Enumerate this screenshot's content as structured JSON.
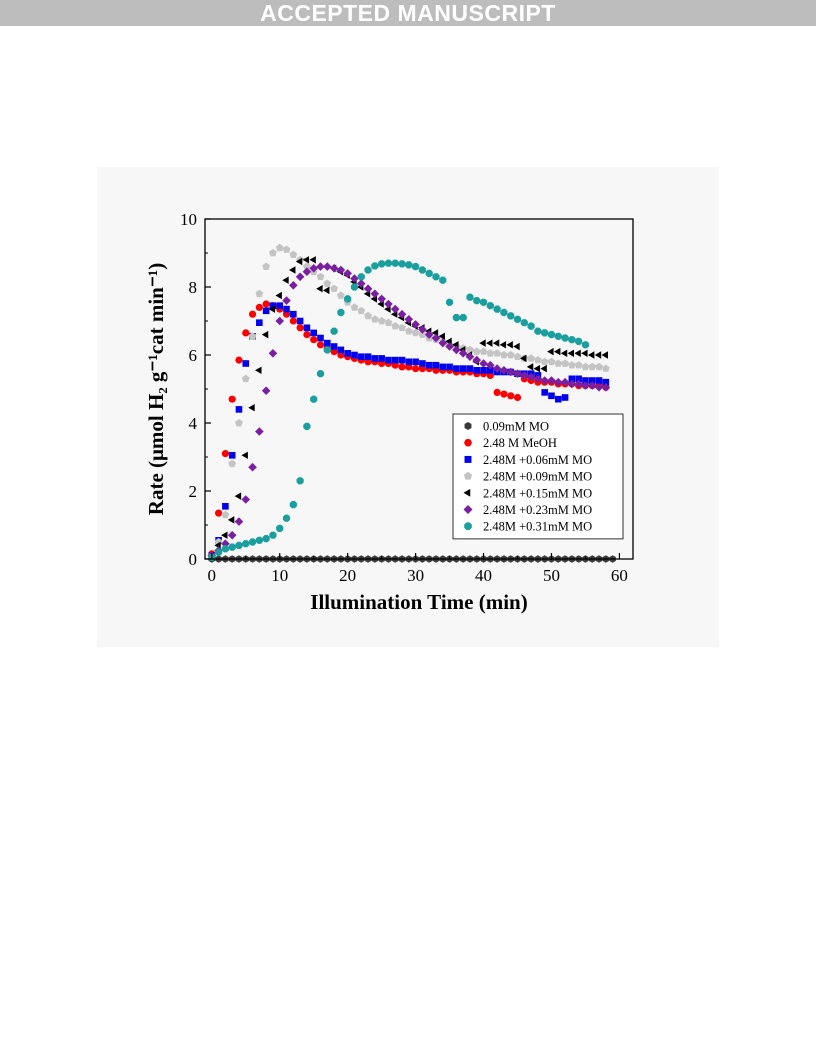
{
  "banner": {
    "text": "ACCEPTED MANUSCRIPT"
  },
  "chart_data": {
    "type": "scatter",
    "title": "",
    "xlabel": "Illumination Time (min)",
    "ylabel": "Rate (μmol H₂ g⁻¹cat min⁻¹)",
    "xlim": [
      -1,
      62
    ],
    "ylim": [
      0,
      10
    ],
    "xticks": [
      0,
      10,
      20,
      30,
      40,
      50,
      60
    ],
    "yticks": [
      0,
      2,
      4,
      6,
      8,
      10
    ],
    "grid": false,
    "legend_position": "lower-right",
    "series": [
      {
        "name": "0.09mM MO",
        "color": "#3a3a3a",
        "marker": "hexagon",
        "x": [
          0,
          1,
          2,
          3,
          4,
          5,
          6,
          7,
          8,
          9,
          10,
          11,
          12,
          13,
          14,
          15,
          16,
          17,
          18,
          19,
          20,
          21,
          22,
          23,
          24,
          25,
          26,
          27,
          28,
          29,
          30,
          31,
          32,
          33,
          34,
          35,
          36,
          37,
          38,
          39,
          40,
          41,
          42,
          43,
          44,
          45,
          46,
          47,
          48,
          49,
          50,
          51,
          52,
          53,
          54,
          55,
          56,
          57,
          58,
          59
        ],
        "y": [
          0,
          0,
          0,
          0,
          0,
          0,
          0,
          0,
          0,
          0,
          0,
          0,
          0,
          0,
          0,
          0,
          0,
          0,
          0,
          0,
          0,
          0,
          0,
          0,
          0,
          0,
          0,
          0,
          0,
          0,
          0,
          0,
          0,
          0,
          0,
          0,
          0,
          0,
          0,
          0,
          0,
          0,
          0,
          0,
          0,
          0,
          0,
          0,
          0,
          0,
          0,
          0,
          0,
          0,
          0,
          0,
          0,
          0,
          0,
          0
        ]
      },
      {
        "name": "2.48 M MeOH",
        "color": "#ff0000",
        "marker": "circle",
        "x": [
          0,
          1,
          2,
          3,
          4,
          5,
          6,
          7,
          8,
          9,
          10,
          11,
          12,
          13,
          14,
          15,
          16,
          17,
          18,
          19,
          20,
          21,
          22,
          23,
          24,
          25,
          26,
          27,
          28,
          29,
          30,
          31,
          32,
          33,
          34,
          35,
          36,
          37,
          38,
          39,
          40,
          41,
          42,
          43,
          44,
          45,
          46,
          47,
          48,
          49,
          50,
          51,
          52,
          53,
          54,
          55,
          56,
          57,
          58
        ],
        "y": [
          0.15,
          1.35,
          3.1,
          4.7,
          5.85,
          6.65,
          7.2,
          7.4,
          7.5,
          7.45,
          7.35,
          7.2,
          7.0,
          6.8,
          6.6,
          6.45,
          6.3,
          6.2,
          6.1,
          6.0,
          5.95,
          5.9,
          5.85,
          5.8,
          5.8,
          5.75,
          5.75,
          5.7,
          5.65,
          5.65,
          5.6,
          5.6,
          5.6,
          5.55,
          5.55,
          5.55,
          5.5,
          5.5,
          5.5,
          5.45,
          5.45,
          5.4,
          4.9,
          4.85,
          4.8,
          4.75,
          5.3,
          5.25,
          5.2,
          5.2,
          5.2,
          5.15,
          5.15,
          5.15,
          5.1,
          5.1,
          5.1,
          5.1,
          5.05
        ]
      },
      {
        "name": "2.48M +0.06mM MO",
        "color": "#0000ee",
        "marker": "square",
        "x": [
          0,
          1,
          2,
          3,
          4,
          5,
          6,
          7,
          8,
          9,
          10,
          11,
          12,
          13,
          14,
          15,
          16,
          17,
          18,
          19,
          20,
          21,
          22,
          23,
          24,
          25,
          26,
          27,
          28,
          29,
          30,
          31,
          32,
          33,
          34,
          35,
          36,
          37,
          38,
          39,
          40,
          41,
          42,
          43,
          44,
          45,
          46,
          47,
          48,
          49,
          50,
          51,
          52,
          53,
          54,
          55,
          56,
          57,
          58
        ],
        "y": [
          0.1,
          0.55,
          1.55,
          3.05,
          4.4,
          5.75,
          6.55,
          6.95,
          7.3,
          7.45,
          7.45,
          7.35,
          7.2,
          7.0,
          6.8,
          6.65,
          6.5,
          6.35,
          6.25,
          6.15,
          6.05,
          6.0,
          5.95,
          5.95,
          5.9,
          5.9,
          5.85,
          5.85,
          5.85,
          5.8,
          5.8,
          5.75,
          5.7,
          5.7,
          5.65,
          5.65,
          5.6,
          5.6,
          5.6,
          5.55,
          5.55,
          5.55,
          5.5,
          5.5,
          5.5,
          5.45,
          5.45,
          5.45,
          5.4,
          4.9,
          4.8,
          4.7,
          4.75,
          5.3,
          5.3,
          5.25,
          5.25,
          5.25,
          5.2
        ]
      },
      {
        "name": "2.48M +0.09mM MO",
        "color": "#c4c4c4",
        "marker": "pentagon",
        "x": [
          0,
          1,
          2,
          3,
          4,
          5,
          6,
          7,
          8,
          9,
          10,
          11,
          12,
          13,
          14,
          15,
          16,
          17,
          18,
          19,
          20,
          21,
          22,
          23,
          24,
          25,
          26,
          27,
          28,
          29,
          30,
          31,
          32,
          33,
          34,
          35,
          36,
          37,
          38,
          39,
          40,
          41,
          42,
          43,
          44,
          45,
          46,
          47,
          48,
          49,
          50,
          51,
          52,
          53,
          54,
          55,
          56,
          57,
          58
        ],
        "y": [
          0.1,
          0.5,
          1.3,
          2.8,
          4.0,
          5.3,
          6.55,
          7.8,
          8.6,
          9.0,
          9.15,
          9.1,
          8.95,
          8.8,
          8.6,
          8.45,
          8.3,
          8.1,
          7.95,
          7.75,
          7.55,
          7.4,
          7.3,
          7.15,
          7.05,
          7.0,
          6.95,
          6.85,
          6.8,
          6.7,
          6.65,
          6.6,
          6.5,
          6.45,
          6.4,
          6.3,
          6.25,
          6.2,
          6.15,
          6.1,
          6.1,
          6.05,
          6.05,
          6.0,
          6.0,
          5.95,
          5.9,
          5.9,
          5.85,
          5.8,
          5.8,
          5.75,
          5.75,
          5.7,
          5.7,
          5.65,
          5.65,
          5.65,
          5.6
        ]
      },
      {
        "name": "2.48M +0.15mM MO",
        "color": "#000000",
        "marker": "triangle-left",
        "x": [
          0,
          1,
          2,
          3,
          4,
          5,
          6,
          7,
          8,
          9,
          10,
          11,
          12,
          13,
          14,
          15,
          16,
          17,
          18,
          19,
          20,
          21,
          22,
          23,
          24,
          25,
          26,
          27,
          28,
          29,
          30,
          31,
          32,
          33,
          34,
          35,
          36,
          37,
          38,
          39,
          40,
          41,
          42,
          43,
          44,
          45,
          46,
          47,
          48,
          49,
          50,
          51,
          52,
          53,
          54,
          55,
          56,
          57,
          58
        ],
        "y": [
          0.1,
          0.4,
          0.7,
          1.15,
          1.85,
          3.05,
          4.45,
          5.55,
          6.6,
          7.35,
          7.75,
          8.2,
          8.5,
          8.75,
          8.8,
          8.8,
          7.95,
          7.9,
          8.55,
          8.45,
          8.35,
          8.15,
          8.0,
          7.8,
          7.65,
          7.5,
          7.35,
          7.2,
          7.1,
          6.95,
          6.85,
          6.8,
          6.7,
          6.65,
          6.55,
          6.4,
          6.3,
          6.15,
          6.0,
          5.8,
          6.35,
          6.35,
          6.35,
          6.3,
          6.3,
          6.25,
          5.9,
          5.65,
          5.6,
          5.6,
          6.1,
          6.1,
          6.05,
          6.05,
          6.05,
          6.05,
          6.0,
          6.0,
          6.0
        ]
      },
      {
        "name": "2.48M +0.23mM MO",
        "color": "#7a1fa2",
        "marker": "diamond",
        "x": [
          0,
          1,
          2,
          3,
          4,
          5,
          6,
          7,
          8,
          9,
          10,
          11,
          12,
          13,
          14,
          15,
          16,
          17,
          18,
          19,
          20,
          21,
          22,
          23,
          24,
          25,
          26,
          27,
          28,
          29,
          30,
          31,
          32,
          33,
          34,
          35,
          36,
          37,
          38,
          39,
          40,
          41,
          42,
          43,
          44,
          45,
          46,
          47,
          48,
          49,
          50,
          51,
          52,
          53,
          54,
          55,
          56,
          57,
          58
        ],
        "y": [
          0.1,
          0.25,
          0.45,
          0.7,
          1.1,
          1.75,
          2.7,
          3.75,
          4.95,
          6.05,
          7.0,
          7.6,
          8.05,
          8.3,
          8.45,
          8.55,
          8.6,
          8.6,
          8.55,
          8.5,
          8.4,
          8.25,
          8.1,
          7.95,
          7.8,
          7.65,
          7.5,
          7.35,
          7.2,
          7.05,
          6.9,
          6.75,
          6.6,
          6.5,
          6.35,
          6.25,
          6.15,
          6.05,
          5.95,
          5.85,
          5.75,
          5.7,
          5.6,
          5.55,
          5.5,
          5.45,
          5.4,
          5.35,
          5.3,
          5.25,
          5.25,
          5.2,
          5.2,
          5.15,
          5.15,
          5.1,
          5.1,
          5.05,
          5.05
        ]
      },
      {
        "name": "2.48M +0.31mM MO",
        "color": "#1a9e9e",
        "marker": "octagon",
        "x": [
          0,
          1,
          2,
          3,
          4,
          5,
          6,
          7,
          8,
          9,
          10,
          11,
          12,
          13,
          14,
          15,
          16,
          17,
          18,
          19,
          20,
          21,
          22,
          23,
          24,
          25,
          26,
          27,
          28,
          29,
          30,
          31,
          32,
          33,
          34,
          35,
          36,
          37,
          38,
          39,
          40,
          41,
          42,
          43,
          44,
          45,
          46,
          47,
          48,
          49,
          50,
          51,
          52,
          53,
          54,
          55
        ],
        "y": [
          0.05,
          0.2,
          0.3,
          0.35,
          0.4,
          0.45,
          0.5,
          0.55,
          0.6,
          0.7,
          0.9,
          1.2,
          1.6,
          2.3,
          3.9,
          4.7,
          5.45,
          6.15,
          6.7,
          7.25,
          7.65,
          8.0,
          8.3,
          8.5,
          8.62,
          8.68,
          8.7,
          8.7,
          8.68,
          8.65,
          8.6,
          8.5,
          8.4,
          8.3,
          8.2,
          7.55,
          7.1,
          7.1,
          7.7,
          7.6,
          7.55,
          7.45,
          7.35,
          7.25,
          7.15,
          7.05,
          6.95,
          6.85,
          6.7,
          6.65,
          6.6,
          6.55,
          6.5,
          6.45,
          6.4,
          6.3
        ]
      }
    ]
  }
}
